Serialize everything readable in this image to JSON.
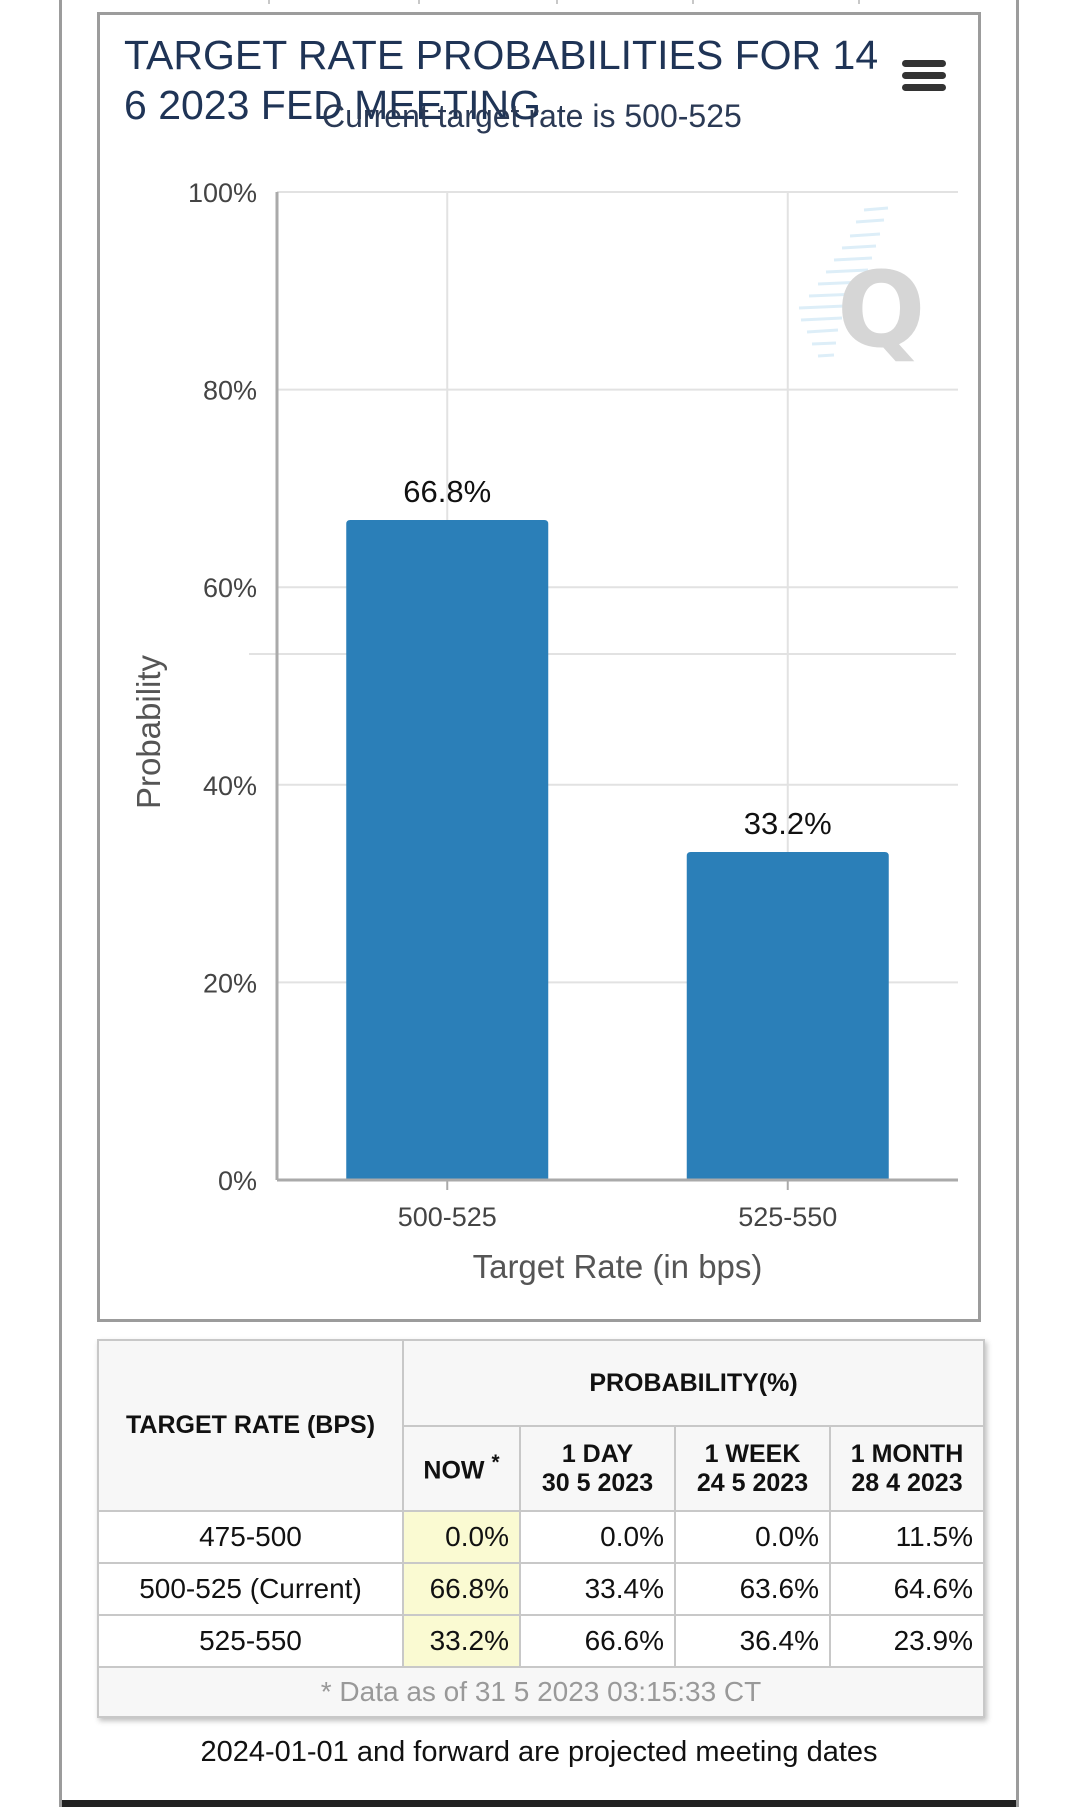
{
  "chart": {
    "title": "TARGET RATE PROBABILITIES FOR 14 6 2023 FED MEETING",
    "subtitle": "Current target rate is 500-525"
  },
  "chart_data": {
    "type": "bar",
    "title": "TARGET RATE PROBABILITIES FOR 14 6 2023 FED MEETING",
    "subtitle": "Current target rate is 500-525",
    "categories": [
      "500-525",
      "525-550"
    ],
    "values": [
      66.8,
      33.2
    ],
    "data_labels": [
      "66.8%",
      "33.2%"
    ],
    "xlabel": "Target Rate (in bps)",
    "ylabel": "Probability",
    "ylim": [
      0,
      100
    ],
    "yticks": [
      "0%",
      "20%",
      "40%",
      "60%",
      "80%",
      "100%"
    ],
    "grid": true,
    "bar_color": "#2b7fb8"
  },
  "table": {
    "header_target": "TARGET RATE (BPS)",
    "header_probability": "PROBABILITY(%)",
    "header_now": "NOW",
    "header_now_mark": "*",
    "header_1day": "1 DAY",
    "header_1day_date": "30 5 2023",
    "header_1week": "1 WEEK",
    "header_1week_date": "24 5 2023",
    "header_1month": "1 MONTH",
    "header_1month_date": "28 4 2023",
    "rows": [
      {
        "rate": "475-500",
        "now": "0.0%",
        "day": "0.0%",
        "week": "0.0%",
        "month": "11.5%"
      },
      {
        "rate": "500-525 (Current)",
        "now": "66.8%",
        "day": "33.4%",
        "week": "63.6%",
        "month": "64.6%"
      },
      {
        "rate": "525-550",
        "now": "33.2%",
        "day": "66.6%",
        "week": "36.4%",
        "month": "23.9%"
      }
    ],
    "footnote": "* Data as of 31 5 2023 03:15:33 CT",
    "now_highlight_color": "#fafad2"
  },
  "note": "2024-01-01 and forward are projected meeting dates"
}
